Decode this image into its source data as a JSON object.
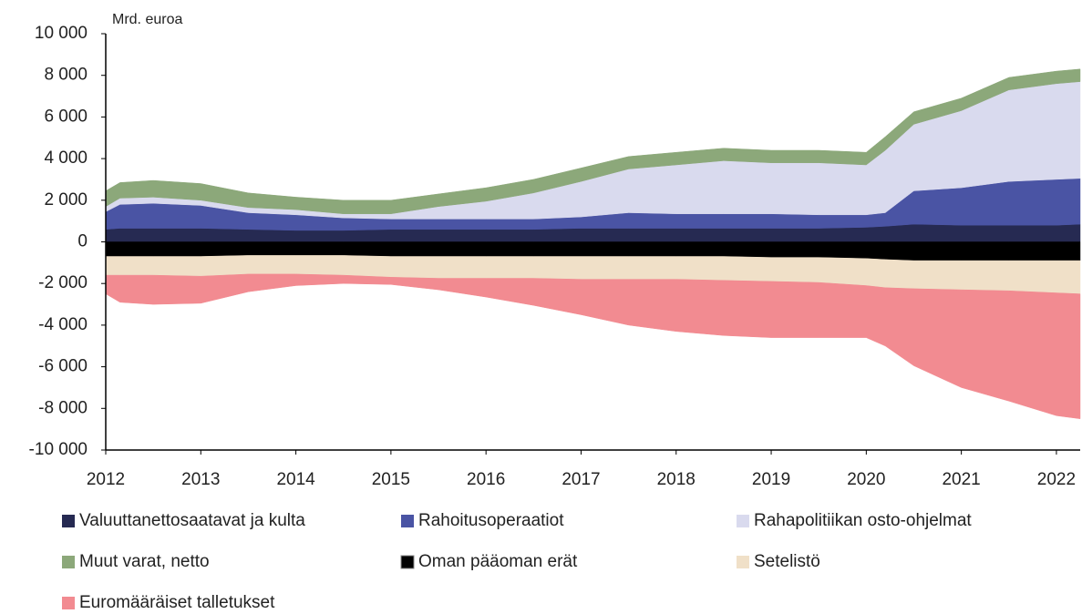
{
  "chart_data": {
    "type": "stacked_area",
    "y_unit_label": "Mrd. euroa",
    "x": [
      2012,
      2012.15,
      2012.5,
      2013,
      2013.5,
      2014,
      2014.5,
      2015,
      2015.5,
      2016,
      2016.5,
      2017,
      2017.5,
      2018,
      2018.5,
      2019,
      2019.5,
      2020,
      2020.2,
      2020.5,
      2021,
      2021.5,
      2022,
      2022.25
    ],
    "xlim": [
      2012,
      2022.25
    ],
    "xticks": [
      2012,
      2013,
      2014,
      2015,
      2016,
      2017,
      2018,
      2019,
      2020,
      2021,
      2022
    ],
    "ylim": [
      -10000,
      10000
    ],
    "yticks": [
      {
        "value": -10000,
        "label": "-10 000"
      },
      {
        "value": -8000,
        "label": "-8 000"
      },
      {
        "value": -6000,
        "label": "-6 000"
      },
      {
        "value": -4000,
        "label": "-4 000"
      },
      {
        "value": -2000,
        "label": "-2 000"
      },
      0,
      {
        "value": 2000,
        "label": "2 000"
      },
      {
        "value": 4000,
        "label": "4 000"
      },
      {
        "value": 6000,
        "label": "6 000"
      },
      {
        "value": 8000,
        "label": "8 000"
      },
      {
        "value": 10000,
        "label": "10 000"
      }
    ],
    "legend": "bottom",
    "series": [
      {
        "name": "Valuuttanettosaatavat ja kulta",
        "color": "#262a52",
        "values": [
          600,
          650,
          650,
          650,
          600,
          550,
          550,
          600,
          600,
          600,
          600,
          650,
          650,
          650,
          650,
          650,
          650,
          700,
          750,
          850,
          800,
          800,
          800,
          850
        ]
      },
      {
        "name": "Rahoitusoperaatiot",
        "color": "#4a54a4",
        "values": [
          850,
          1150,
          1200,
          1100,
          800,
          750,
          600,
          500,
          500,
          500,
          500,
          550,
          750,
          700,
          700,
          700,
          650,
          600,
          650,
          1600,
          1800,
          2100,
          2200,
          2200
        ]
      },
      {
        "name": "Rahapolitiikan osto-ohjelmat",
        "color": "#d9daee",
        "values": [
          250,
          300,
          300,
          250,
          250,
          250,
          200,
          250,
          600,
          850,
          1250,
          1700,
          2100,
          2350,
          2550,
          2450,
          2500,
          2400,
          3000,
          3200,
          3700,
          4400,
          4600,
          4650
        ]
      },
      {
        "name": "Muut varat, netto",
        "color": "#8ca87a",
        "values": [
          750,
          750,
          800,
          800,
          700,
          600,
          650,
          650,
          600,
          650,
          650,
          650,
          600,
          600,
          600,
          600,
          600,
          600,
          650,
          600,
          600,
          600,
          600,
          600
        ]
      },
      {
        "name": "Oman pääoman erät",
        "color": "#000000",
        "values": [
          -700,
          -700,
          -700,
          -700,
          -650,
          -650,
          -650,
          -700,
          -700,
          -700,
          -700,
          -700,
          -700,
          -700,
          -700,
          -750,
          -750,
          -800,
          -850,
          -900,
          -900,
          -900,
          -900,
          -900
        ]
      },
      {
        "name": "Setelistö",
        "color": "#f0e0c8",
        "values": [
          -900,
          -900,
          -900,
          -950,
          -900,
          -900,
          -950,
          -1000,
          -1050,
          -1050,
          -1050,
          -1100,
          -1100,
          -1100,
          -1150,
          -1150,
          -1200,
          -1300,
          -1350,
          -1350,
          -1400,
          -1450,
          -1550,
          -1600
        ]
      },
      {
        "name": "Euromääräiset talletukset",
        "color": "#f28b91",
        "values": [
          -900,
          -1300,
          -1400,
          -1300,
          -850,
          -550,
          -400,
          -350,
          -550,
          -900,
          -1300,
          -1700,
          -2200,
          -2500,
          -2650,
          -2700,
          -2650,
          -2500,
          -2800,
          -3700,
          -4700,
          -5300,
          -5900,
          -6000
        ]
      }
    ]
  }
}
